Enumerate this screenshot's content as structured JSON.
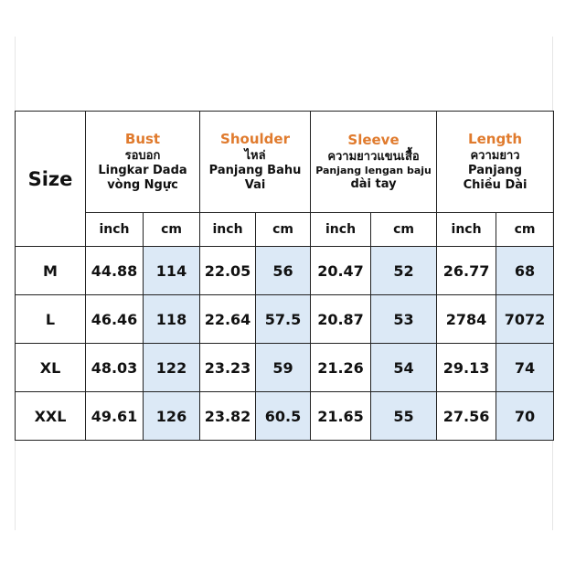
{
  "table": {
    "size_label": "Size",
    "groups": [
      {
        "title": "Bust",
        "lines": [
          "รอบอก",
          "Lingkar Dada",
          "vòng Ngực"
        ]
      },
      {
        "title": "Shoulder",
        "lines": [
          "ไหล่",
          "Panjang Bahu",
          "Vai"
        ]
      },
      {
        "title": "Sleeve",
        "lines": [
          "ความยาวแขนเสื้อ",
          "Panjang lengan baju",
          "dài tay"
        ]
      },
      {
        "title": "Length",
        "lines": [
          "ความยาว",
          "Panjang",
          "Chiều Dài"
        ]
      }
    ],
    "units": {
      "inch": "inch",
      "cm": "cm"
    },
    "rows": [
      {
        "size": "M",
        "values": [
          "44.88",
          "114",
          "22.05",
          "56",
          "20.47",
          "52",
          "26.77",
          "68"
        ]
      },
      {
        "size": "L",
        "values": [
          "46.46",
          "118",
          "22.64",
          "57.5",
          "20.87",
          "53",
          "2784",
          "7072"
        ]
      },
      {
        "size": "XL",
        "values": [
          "48.03",
          "122",
          "23.23",
          "59",
          "21.26",
          "54",
          "29.13",
          "74"
        ]
      },
      {
        "size": "XXL",
        "values": [
          "49.61",
          "126",
          "23.82",
          "60.5",
          "21.65",
          "55",
          "27.56",
          "70"
        ]
      }
    ],
    "cm_highlight_color": "#dce9f6",
    "title_color": "#e07b2e"
  }
}
